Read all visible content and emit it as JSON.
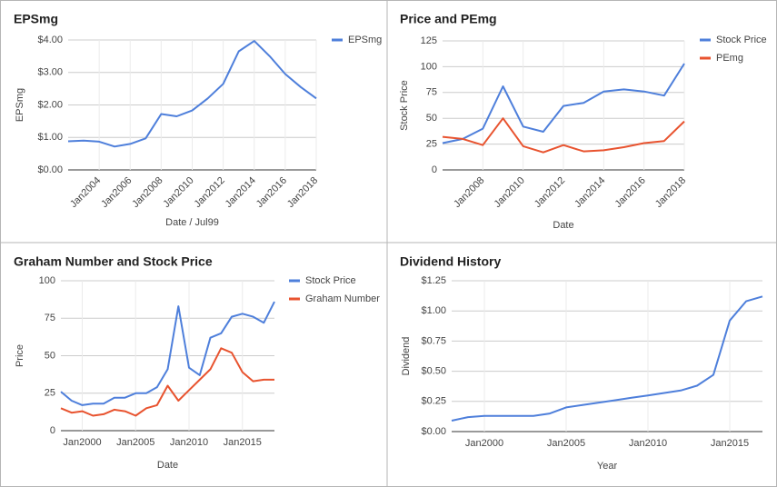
{
  "chart_data": [
    {
      "type": "line",
      "title": "EPSmg",
      "x_label": "Date / Jul99",
      "y_label": "EPSmg",
      "grid": true,
      "legend": "right",
      "x": [
        2002,
        2003,
        2004,
        2005,
        2006,
        2007,
        2008,
        2009,
        2010,
        2011,
        2012,
        2013,
        2014,
        2015,
        2016,
        2017,
        2018
      ],
      "xlim": [
        2002,
        2018
      ],
      "xticks": [
        {
          "value": 2004,
          "label": "Jan2004"
        },
        {
          "value": 2006,
          "label": "Jan2006"
        },
        {
          "value": 2008,
          "label": "Jan2008"
        },
        {
          "value": 2010,
          "label": "Jan2010"
        },
        {
          "value": 2012,
          "label": "Jan2012"
        },
        {
          "value": 2014,
          "label": "Jan2014"
        },
        {
          "value": 2016,
          "label": "Jan2016"
        },
        {
          "value": 2018,
          "label": "Jan2018"
        }
      ],
      "ylim": [
        0,
        4
      ],
      "yticks": [
        {
          "value": 0,
          "label": "$0.00"
        },
        {
          "value": 1,
          "label": "$1.00"
        },
        {
          "value": 2,
          "label": "$2.00"
        },
        {
          "value": 3,
          "label": "$3.00"
        },
        {
          "value": 4,
          "label": "$4.00"
        }
      ],
      "series": [
        {
          "name": "EPSmg",
          "color": "#4e7fdb",
          "values": [
            0.88,
            0.9,
            0.87,
            0.72,
            0.8,
            0.97,
            1.72,
            1.65,
            1.83,
            2.2,
            2.65,
            3.65,
            3.97,
            3.5,
            2.95,
            2.55,
            2.2
          ]
        }
      ]
    },
    {
      "type": "line",
      "title": "Price and PEmg",
      "x_label": "Date",
      "y_label": "Stock Price",
      "grid": true,
      "legend": "right",
      "x": [
        2006,
        2007,
        2008,
        2009,
        2010,
        2011,
        2012,
        2013,
        2014,
        2015,
        2016,
        2017,
        2018
      ],
      "xlim": [
        2006,
        2018
      ],
      "xticks": [
        {
          "value": 2008,
          "label": "Jan2008"
        },
        {
          "value": 2010,
          "label": "Jan2010"
        },
        {
          "value": 2012,
          "label": "Jan2012"
        },
        {
          "value": 2014,
          "label": "Jan2014"
        },
        {
          "value": 2016,
          "label": "Jan2016"
        },
        {
          "value": 2018,
          "label": "Jan2018"
        }
      ],
      "ylim": [
        0,
        125
      ],
      "yticks": [
        0,
        25,
        50,
        75,
        100,
        125
      ],
      "series": [
        {
          "name": "Stock Price",
          "color": "#4e7fdb",
          "values": [
            26,
            30,
            40,
            81,
            42,
            37,
            62,
            65,
            76,
            78,
            76,
            72,
            103
          ]
        },
        {
          "name": "PEmg",
          "color": "#e8532f",
          "values": [
            32,
            30,
            24,
            50,
            23,
            17,
            24,
            18,
            19,
            22,
            26,
            28,
            47
          ]
        }
      ]
    },
    {
      "type": "line",
      "title": "Graham Number and Stock Price",
      "x_label": "Date",
      "y_label": "Price",
      "grid": true,
      "legend": "right",
      "x": [
        1998,
        1999,
        2000,
        2001,
        2002,
        2003,
        2004,
        2005,
        2006,
        2007,
        2008,
        2009,
        2010,
        2011,
        2012,
        2013,
        2014,
        2015,
        2016,
        2017,
        2018
      ],
      "xlim": [
        1998,
        2018
      ],
      "xticks": [
        {
          "value": 2000,
          "label": "Jan2000"
        },
        {
          "value": 2005,
          "label": "Jan2005"
        },
        {
          "value": 2010,
          "label": "Jan2010"
        },
        {
          "value": 2015,
          "label": "Jan2015"
        }
      ],
      "ylim": [
        0,
        100
      ],
      "yticks": [
        0,
        25,
        50,
        75,
        100
      ],
      "series": [
        {
          "name": "Stock Price",
          "color": "#4e7fdb",
          "values": [
            26,
            20,
            17,
            18,
            18,
            22,
            22,
            25,
            25,
            29,
            41,
            83,
            42,
            37,
            62,
            65,
            76,
            78,
            76,
            72,
            86
          ]
        },
        {
          "name": "Graham Number",
          "color": "#e8532f",
          "values": [
            15,
            12,
            13,
            10,
            11,
            14,
            13,
            10,
            15,
            17,
            30,
            20,
            27,
            34,
            41,
            55,
            52,
            39,
            33,
            34,
            34
          ]
        }
      ]
    },
    {
      "type": "line",
      "title": "Dividend History",
      "x_label": "Year",
      "y_label": "Dividend",
      "grid": true,
      "x": [
        1998,
        1999,
        2000,
        2001,
        2002,
        2003,
        2004,
        2005,
        2006,
        2007,
        2008,
        2009,
        2010,
        2011,
        2012,
        2013,
        2014,
        2015,
        2016,
        2017
      ],
      "xlim": [
        1998,
        2017
      ],
      "xticks": [
        {
          "value": 2000,
          "label": "Jan2000"
        },
        {
          "value": 2005,
          "label": "Jan2005"
        },
        {
          "value": 2010,
          "label": "Jan2010"
        },
        {
          "value": 2015,
          "label": "Jan2015"
        }
      ],
      "ylim": [
        0,
        1.25
      ],
      "yticks": [
        {
          "value": 0,
          "label": "$0.00"
        },
        {
          "value": 0.25,
          "label": "$0.25"
        },
        {
          "value": 0.5,
          "label": "$0.50"
        },
        {
          "value": 0.75,
          "label": "$0.75"
        },
        {
          "value": 1,
          "label": "$1.00"
        },
        {
          "value": 1.25,
          "label": "$1.25"
        }
      ],
      "color": "#4e7fdb",
      "values": [
        0.09,
        0.12,
        0.13,
        0.13,
        0.13,
        0.13,
        0.15,
        0.2,
        0.22,
        0.24,
        0.26,
        0.28,
        0.3,
        0.32,
        0.34,
        0.38,
        0.47,
        0.92,
        1.08,
        1.12
      ]
    }
  ]
}
